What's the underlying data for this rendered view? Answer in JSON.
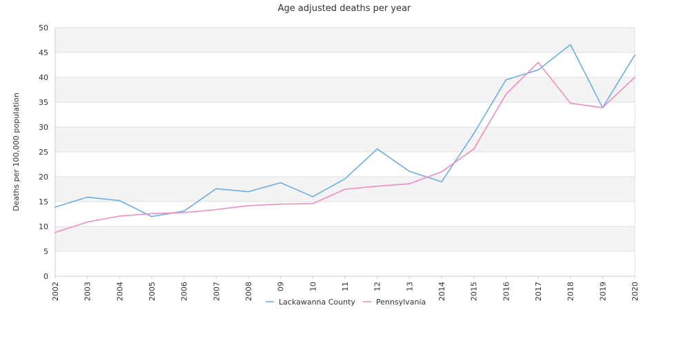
{
  "chart_data": {
    "type": "line",
    "title": "Age adjusted deaths per year",
    "xlabel": "",
    "ylabel": "Deaths per 100,000 population",
    "categories": [
      "2002",
      "2003",
      "2004",
      "2005",
      "2006",
      "2007",
      "2008",
      "09",
      "10",
      "11",
      "12",
      "13",
      "2014",
      "2015",
      "2016",
      "2017",
      "2018",
      "2019",
      "2020"
    ],
    "ylim": [
      0,
      50
    ],
    "yticks": [
      0,
      5,
      10,
      15,
      20,
      25,
      30,
      35,
      40,
      45,
      50
    ],
    "grid": "horizontal alternating bands",
    "legend_position": "bottom-center",
    "series": [
      {
        "name": "Lackawanna County",
        "color": "#6aaee8",
        "values": [
          13.9,
          15.9,
          15.2,
          12.0,
          13.1,
          17.6,
          17.0,
          18.8,
          16.0,
          19.6,
          25.6,
          21.1,
          19.0,
          28.7,
          39.5,
          41.5,
          46.6,
          33.9,
          44.5
        ]
      },
      {
        "name": "Pennsylvania",
        "color": "#f08cbf",
        "values": [
          8.8,
          10.9,
          12.1,
          12.6,
          12.8,
          13.4,
          14.2,
          14.5,
          14.6,
          17.5,
          18.1,
          18.6,
          21.0,
          25.6,
          36.6,
          43.0,
          34.8,
          33.9,
          40.0
        ]
      }
    ]
  },
  "colors": {
    "band_fill": "#f3f3f3",
    "gridline": "#e0e0e0",
    "axis": "#cccccc"
  }
}
